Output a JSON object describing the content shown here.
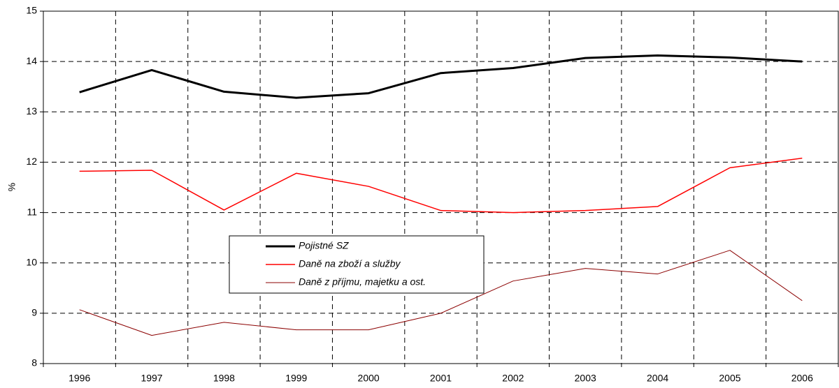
{
  "chart_data": {
    "type": "line",
    "ylabel": "%",
    "categories": [
      "1996",
      "1997",
      "1998",
      "1999",
      "2000",
      "2001",
      "2002",
      "2003",
      "2004",
      "2005",
      "2006"
    ],
    "series": [
      {
        "name": "Pojistné SZ",
        "color": "#000000",
        "width": 3,
        "values": [
          13.39,
          13.83,
          13.4,
          13.28,
          13.37,
          13.77,
          13.87,
          14.07,
          14.12,
          14.08,
          14.0
        ]
      },
      {
        "name": "Daně na zboží a služby",
        "color": "#ff0000",
        "width": 1.5,
        "values": [
          11.82,
          11.84,
          11.05,
          11.78,
          11.52,
          11.04,
          11.0,
          11.04,
          11.12,
          11.89,
          12.08
        ]
      },
      {
        "name": "Daně z příjmu, majetku a ost.",
        "color": "#8b0000",
        "width": 1,
        "values": [
          9.07,
          8.56,
          8.82,
          8.67,
          8.67,
          9.0,
          9.64,
          9.89,
          9.78,
          10.25,
          9.25
        ]
      }
    ],
    "ylim": [
      8,
      15
    ],
    "yticks": [
      8,
      9,
      10,
      11,
      12,
      13,
      14,
      15
    ],
    "grid": true
  }
}
